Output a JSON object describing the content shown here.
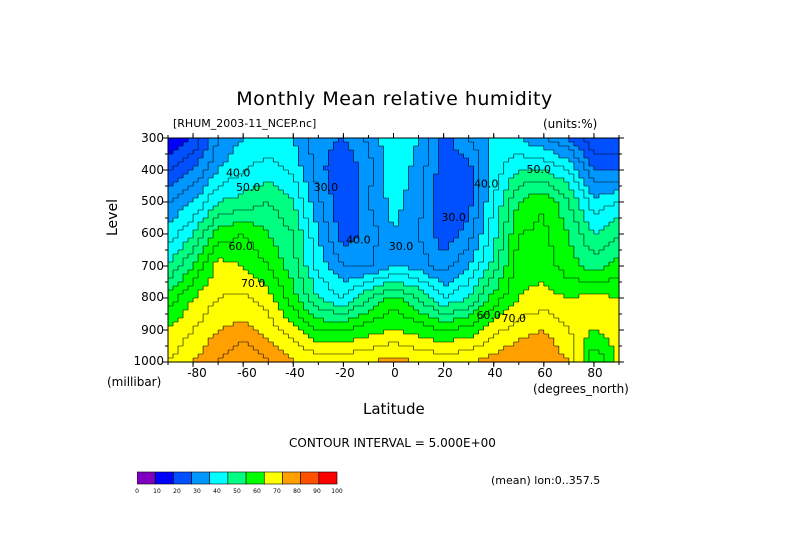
{
  "title": "Monthly Mean relative humidity",
  "file_label": "[RHUM_2003-11_NCEP.nc]",
  "units_label": "(units:%)",
  "y_axis_title": "Level",
  "y_units": "(millibar)",
  "x_axis_title": "Latitude",
  "x_units": "(degrees_north)",
  "y_ticks": [
    "300",
    "400",
    "500",
    "600",
    "700",
    "800",
    "900",
    "1000"
  ],
  "x_ticks": [
    "-80",
    "-60",
    "-40",
    "-20",
    "0",
    "20",
    "40",
    "60",
    "80"
  ],
  "contour_interval": "CONTOUR INTERVAL = 5.000E+00",
  "mean_note": "(mean) lon:0..357.5",
  "colorbar": {
    "ticks": [
      "0",
      "10",
      "20",
      "30",
      "40",
      "50",
      "60",
      "70",
      "80",
      "90",
      "100"
    ],
    "colors": [
      "#8000c0",
      "#0000ff",
      "#0050ff",
      "#0096ff",
      "#00ffff",
      "#00ff80",
      "#00ff00",
      "#ffff00",
      "#ffa000",
      "#ff5000",
      "#ff0000"
    ]
  },
  "chart_data": {
    "type": "heatmap",
    "title": "Monthly Mean relative humidity",
    "xlabel": "Latitude",
    "ylabel": "Level",
    "xlim": [
      -90,
      90
    ],
    "ylim": [
      1000,
      300
    ],
    "x": [
      -90,
      -80,
      -70,
      -60,
      -50,
      -40,
      -30,
      -20,
      -10,
      0,
      10,
      20,
      30,
      40,
      50,
      60,
      70,
      80,
      90
    ],
    "y": [
      300,
      400,
      500,
      600,
      700,
      800,
      900,
      1000
    ],
    "z": [
      [
        15,
        20,
        35,
        40,
        42,
        40,
        32,
        30,
        36,
        45,
        40,
        28,
        35,
        42,
        40,
        35,
        30,
        20,
        20
      ],
      [
        25,
        30,
        40,
        45,
        47,
        44,
        32,
        25,
        33,
        44,
        38,
        27,
        28,
        42,
        50,
        50,
        45,
        30,
        30
      ],
      [
        35,
        40,
        50,
        52,
        55,
        50,
        36,
        25,
        35,
        42,
        37,
        25,
        28,
        45,
        60,
        65,
        55,
        42,
        45
      ],
      [
        42,
        50,
        62,
        65,
        60,
        55,
        40,
        27,
        32,
        40,
        35,
        27,
        32,
        48,
        65,
        66,
        60,
        50,
        55
      ],
      [
        50,
        60,
        72,
        70,
        65,
        57,
        43,
        35,
        34,
        40,
        38,
        32,
        40,
        52,
        68,
        68,
        62,
        58,
        62
      ],
      [
        62,
        70,
        75,
        76,
        72,
        62,
        50,
        45,
        55,
        62,
        55,
        45,
        50,
        62,
        70,
        72,
        70,
        72,
        70
      ],
      [
        70,
        75,
        80,
        82,
        78,
        72,
        65,
        65,
        68,
        70,
        68,
        65,
        67,
        73,
        78,
        80,
        75,
        70,
        72
      ],
      [
        75,
        80,
        85,
        90,
        85,
        80,
        78,
        78,
        80,
        82,
        80,
        78,
        80,
        82,
        85,
        85,
        80,
        60,
        72
      ]
    ],
    "contour_labels": [
      {
        "x": -62,
        "y": 420,
        "value": "40.0"
      },
      {
        "x": -58,
        "y": 465,
        "value": "50.0"
      },
      {
        "x": -27,
        "y": 465,
        "value": "30.0"
      },
      {
        "x": 24,
        "y": 560,
        "value": "30.0"
      },
      {
        "x": 37,
        "y": 455,
        "value": "40.0"
      },
      {
        "x": -14,
        "y": 630,
        "value": "40.0"
      },
      {
        "x": 3,
        "y": 650,
        "value": "30.0"
      },
      {
        "x": 58,
        "y": 410,
        "value": "50.0"
      },
      {
        "x": -61,
        "y": 650,
        "value": "60.0"
      },
      {
        "x": -56,
        "y": 765,
        "value": "70.0"
      },
      {
        "x": 38,
        "y": 865,
        "value": "60.0"
      },
      {
        "x": 48,
        "y": 875,
        "value": "70.0"
      }
    ]
  }
}
